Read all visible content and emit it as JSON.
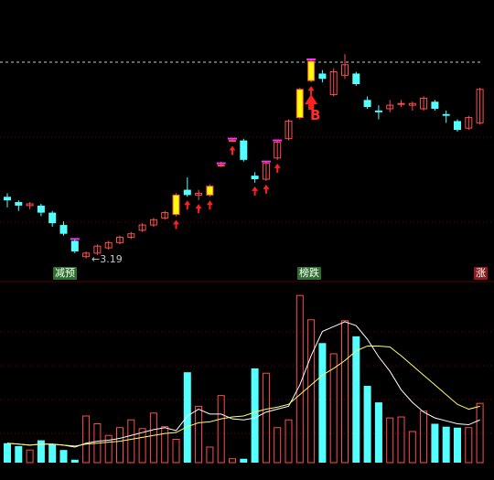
{
  "colors": {
    "up": "#ff4d4d",
    "down": "#54ffff",
    "signal_fill": "#ffff00",
    "signal_cap": "#ff33ff",
    "arrow": "#ff2020",
    "ma_fast": "#ffffff",
    "ma_slow": "#ffff66",
    "grid": "#7a0000",
    "dashed": "#cccccc"
  },
  "labels": {
    "low_marker": "3.19",
    "buy_signal": "B",
    "tag_left": "减预",
    "tag_mid": "榜跌",
    "tag_right": "涨"
  },
  "chart_data": [
    {
      "type": "candlestick",
      "series": [
        {
          "values": [
            [
              3.54,
              3.52,
              3.56,
              3.48
            ],
            [
              3.51,
              3.49,
              3.52,
              3.46
            ],
            [
              3.49,
              3.5,
              3.51,
              3.47
            ],
            [
              3.49,
              3.45,
              3.5,
              3.43
            ],
            [
              3.45,
              3.39,
              3.46,
              3.37
            ],
            [
              3.38,
              3.33,
              3.4,
              3.32
            ],
            [
              3.29,
              3.23,
              3.3,
              3.22
            ],
            [
              3.2,
              3.22,
              3.23,
              3.19
            ],
            [
              3.22,
              3.26,
              3.27,
              3.21
            ],
            [
              3.25,
              3.28,
              3.29,
              3.24
            ],
            [
              3.28,
              3.31,
              3.32,
              3.27
            ],
            [
              3.31,
              3.33,
              3.34,
              3.3
            ],
            [
              3.35,
              3.38,
              3.39,
              3.34
            ],
            [
              3.38,
              3.41,
              3.42,
              3.37
            ],
            [
              3.42,
              3.45,
              3.46,
              3.41
            ],
            [
              3.44,
              3.55,
              3.56,
              3.43
            ],
            [
              3.58,
              3.55,
              3.65,
              3.54
            ],
            [
              3.55,
              3.56,
              3.58,
              3.52
            ],
            [
              3.55,
              3.6,
              3.61,
              3.54
            ],
            [
              3.72,
              3.72,
              3.74,
              3.71
            ],
            [
              3.86,
              3.86,
              3.87,
              3.85
            ],
            [
              3.86,
              3.75,
              3.87,
              3.74
            ],
            [
              3.66,
              3.64,
              3.68,
              3.62
            ],
            [
              3.64,
              3.73,
              3.74,
              3.63
            ],
            [
              3.76,
              3.85,
              3.86,
              3.75
            ],
            [
              3.87,
              3.97,
              3.98,
              3.86
            ],
            [
              3.99,
              4.15,
              4.16,
              3.98
            ],
            [
              4.2,
              4.31,
              4.32,
              4.19
            ],
            [
              4.24,
              4.21,
              4.26,
              4.19
            ],
            [
              4.12,
              4.25,
              4.27,
              4.11
            ],
            [
              4.23,
              4.29,
              4.35,
              4.21
            ],
            [
              4.24,
              4.18,
              4.25,
              4.17
            ],
            [
              4.09,
              4.05,
              4.11,
              4.04
            ],
            [
              4.03,
              4.02,
              4.06,
              3.98
            ],
            [
              4.04,
              4.06,
              4.09,
              4.02
            ],
            [
              4.07,
              4.07,
              4.09,
              4.05
            ],
            [
              4.06,
              4.07,
              4.08,
              4.03
            ],
            [
              4.04,
              4.1,
              4.11,
              4.03
            ],
            [
              4.08,
              4.04,
              4.09,
              4.03
            ],
            [
              4.01,
              4.0,
              4.03,
              3.96
            ],
            [
              3.97,
              3.92,
              3.98,
              3.91
            ],
            [
              3.93,
              3.99,
              4.0,
              3.92
            ],
            [
              3.96,
              4.15,
              4.16,
              3.95
            ]
          ]
        }
      ]
    },
    {
      "type": "bar",
      "series": [
        {
          "name": "volume",
          "values": [
            20,
            17,
            13,
            23,
            19,
            13,
            3,
            48,
            40,
            28,
            36,
            44,
            35,
            51,
            37,
            24,
            93,
            58,
            16,
            69,
            4,
            4,
            97,
            92,
            36,
            44,
            172,
            147,
            123,
            112,
            146,
            130,
            79,
            62,
            46,
            47,
            32,
            53,
            40,
            37,
            36,
            36,
            61
          ]
        },
        {
          "name": "ma_fast",
          "values": [
            20,
            19,
            18,
            19,
            19,
            18,
            16,
            20,
            22,
            23,
            25,
            28,
            31,
            34,
            36,
            33,
            48,
            55,
            50,
            50,
            45,
            44,
            46,
            52,
            55,
            58,
            80,
            110,
            135,
            140,
            145,
            141,
            127,
            109,
            94,
            75,
            62,
            52,
            46,
            43,
            40,
            39,
            44
          ]
        },
        {
          "name": "ma_slow",
          "values": [
            20,
            19,
            18,
            19,
            19,
            18,
            17,
            19,
            20,
            21,
            22,
            24,
            26,
            28,
            30,
            31,
            37,
            41,
            42,
            45,
            47,
            48,
            52,
            55,
            57,
            60,
            70,
            80,
            90,
            97,
            105,
            115,
            120,
            120,
            119,
            110,
            100,
            90,
            80,
            70,
            60,
            55,
            58
          ]
        }
      ]
    }
  ]
}
